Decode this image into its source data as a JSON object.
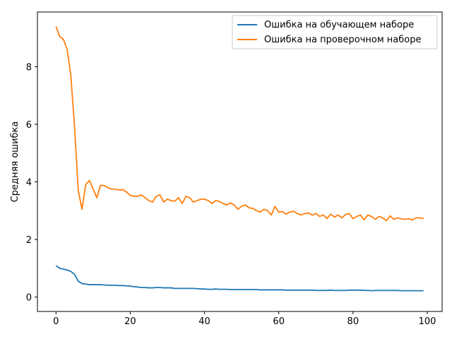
{
  "chart_data": {
    "type": "line",
    "title": "",
    "xlabel": "",
    "ylabel": "Средняя ошибка",
    "xlim": [
      -5,
      104
    ],
    "ylim": [
      -0.5,
      9.9
    ],
    "xticks": [
      0,
      20,
      40,
      60,
      80,
      100
    ],
    "yticks": [
      0,
      2,
      4,
      6,
      8
    ],
    "grid": false,
    "legend_position": "top-right",
    "series": [
      {
        "name": "Ошибка на обучающем наборе",
        "color": "#1f77b4",
        "values": [
          1.09,
          1.0,
          0.97,
          0.94,
          0.89,
          0.79,
          0.55,
          0.47,
          0.45,
          0.43,
          0.43,
          0.43,
          0.43,
          0.42,
          0.41,
          0.41,
          0.41,
          0.4,
          0.4,
          0.39,
          0.38,
          0.36,
          0.35,
          0.33,
          0.33,
          0.32,
          0.32,
          0.33,
          0.33,
          0.32,
          0.32,
          0.32,
          0.3,
          0.3,
          0.3,
          0.3,
          0.3,
          0.3,
          0.29,
          0.28,
          0.28,
          0.27,
          0.27,
          0.28,
          0.27,
          0.27,
          0.27,
          0.26,
          0.26,
          0.26,
          0.26,
          0.26,
          0.26,
          0.26,
          0.26,
          0.25,
          0.25,
          0.25,
          0.25,
          0.25,
          0.25,
          0.25,
          0.24,
          0.24,
          0.24,
          0.24,
          0.24,
          0.24,
          0.24,
          0.24,
          0.23,
          0.23,
          0.23,
          0.23,
          0.24,
          0.23,
          0.23,
          0.23,
          0.23,
          0.24,
          0.24,
          0.24,
          0.24,
          0.23,
          0.23,
          0.22,
          0.23,
          0.23,
          0.23,
          0.23,
          0.23,
          0.23,
          0.23,
          0.22,
          0.22,
          0.22,
          0.22,
          0.22,
          0.22,
          0.22
        ]
      },
      {
        "name": "Ошибка на проверочном наборе",
        "color": "#ff7f0e",
        "values": [
          9.4,
          9.05,
          8.95,
          8.6,
          7.7,
          5.9,
          3.7,
          3.05,
          3.9,
          4.05,
          3.75,
          3.45,
          3.88,
          3.87,
          3.8,
          3.75,
          3.75,
          3.72,
          3.73,
          3.65,
          3.53,
          3.5,
          3.5,
          3.55,
          3.45,
          3.35,
          3.3,
          3.5,
          3.55,
          3.3,
          3.4,
          3.35,
          3.33,
          3.45,
          3.25,
          3.5,
          3.45,
          3.3,
          3.35,
          3.4,
          3.4,
          3.35,
          3.25,
          3.35,
          3.32,
          3.25,
          3.2,
          3.27,
          3.2,
          3.05,
          3.15,
          3.2,
          3.1,
          3.08,
          3.0,
          2.95,
          3.05,
          3.0,
          2.85,
          3.15,
          2.95,
          2.97,
          2.88,
          2.95,
          2.98,
          2.9,
          2.85,
          2.9,
          2.92,
          2.85,
          2.9,
          2.8,
          2.85,
          2.73,
          2.88,
          2.78,
          2.85,
          2.75,
          2.87,
          2.9,
          2.72,
          2.8,
          2.85,
          2.68,
          2.85,
          2.8,
          2.7,
          2.8,
          2.75,
          2.65,
          2.82,
          2.7,
          2.75,
          2.72,
          2.7,
          2.72,
          2.68,
          2.75,
          2.75,
          2.73
        ]
      }
    ]
  }
}
